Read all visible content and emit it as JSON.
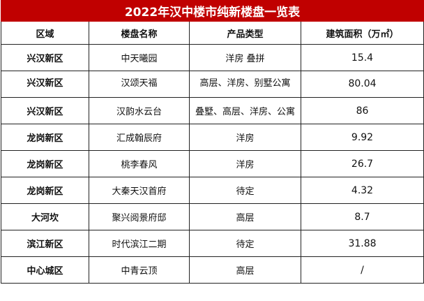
{
  "title": "2022年汉中楼市纯新楼盘一览表",
  "headers": [
    "区域",
    "楼盘名称",
    "产品类型",
    "建筑面积（万㎡）"
  ],
  "rows": [
    {
      "area": "兴汉新区",
      "name": "中天曦园",
      "type": "洋房 叠拼",
      "size": "15.4"
    },
    {
      "area": "兴汉新区",
      "name": "汉颂天福",
      "type": "高层、洋房、别墅公寓",
      "size": "80.04"
    },
    {
      "area": "兴汉新区",
      "name": "汉韵水云台",
      "type": "叠墅、高层、洋房、公寓",
      "size": "86"
    },
    {
      "area": "龙岗新区",
      "name": "汇成翰辰府",
      "type": "洋房",
      "size": "9.92"
    },
    {
      "area": "龙岗新区",
      "name": "桃李春风",
      "type": "洋房",
      "size": "26.7"
    },
    {
      "area": "龙岗新区",
      "name": "大秦天汉首府",
      "type": "待定",
      "size": "4.32"
    },
    {
      "area": "大河坎",
      "name": "聚兴阅景府邸",
      "type": "高层",
      "size": "8.7"
    },
    {
      "area": "滨江新区",
      "name": "时代滨江二期",
      "type": "待定",
      "size": "31.88"
    },
    {
      "area": "中心城区",
      "name": "中青云顶",
      "type": "高层",
      "size": "/"
    }
  ]
}
